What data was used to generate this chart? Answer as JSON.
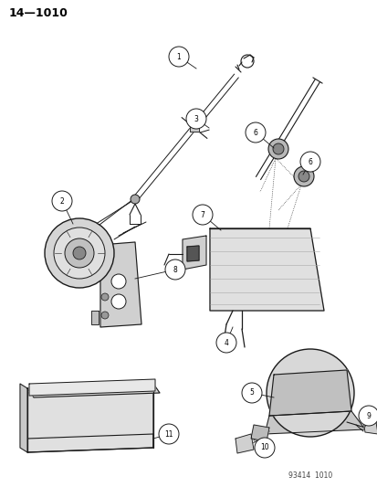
{
  "title_text": "14—1010",
  "footer_text": "93414  1010",
  "bg_color": "#ffffff",
  "line_color": "#1a1a1a",
  "figsize": [
    4.14,
    5.33
  ],
  "dpi": 100,
  "title_fontsize": 9,
  "footer_fontsize": 5.5,
  "callout_fontsize": 5.5,
  "callout_r": 0.016
}
